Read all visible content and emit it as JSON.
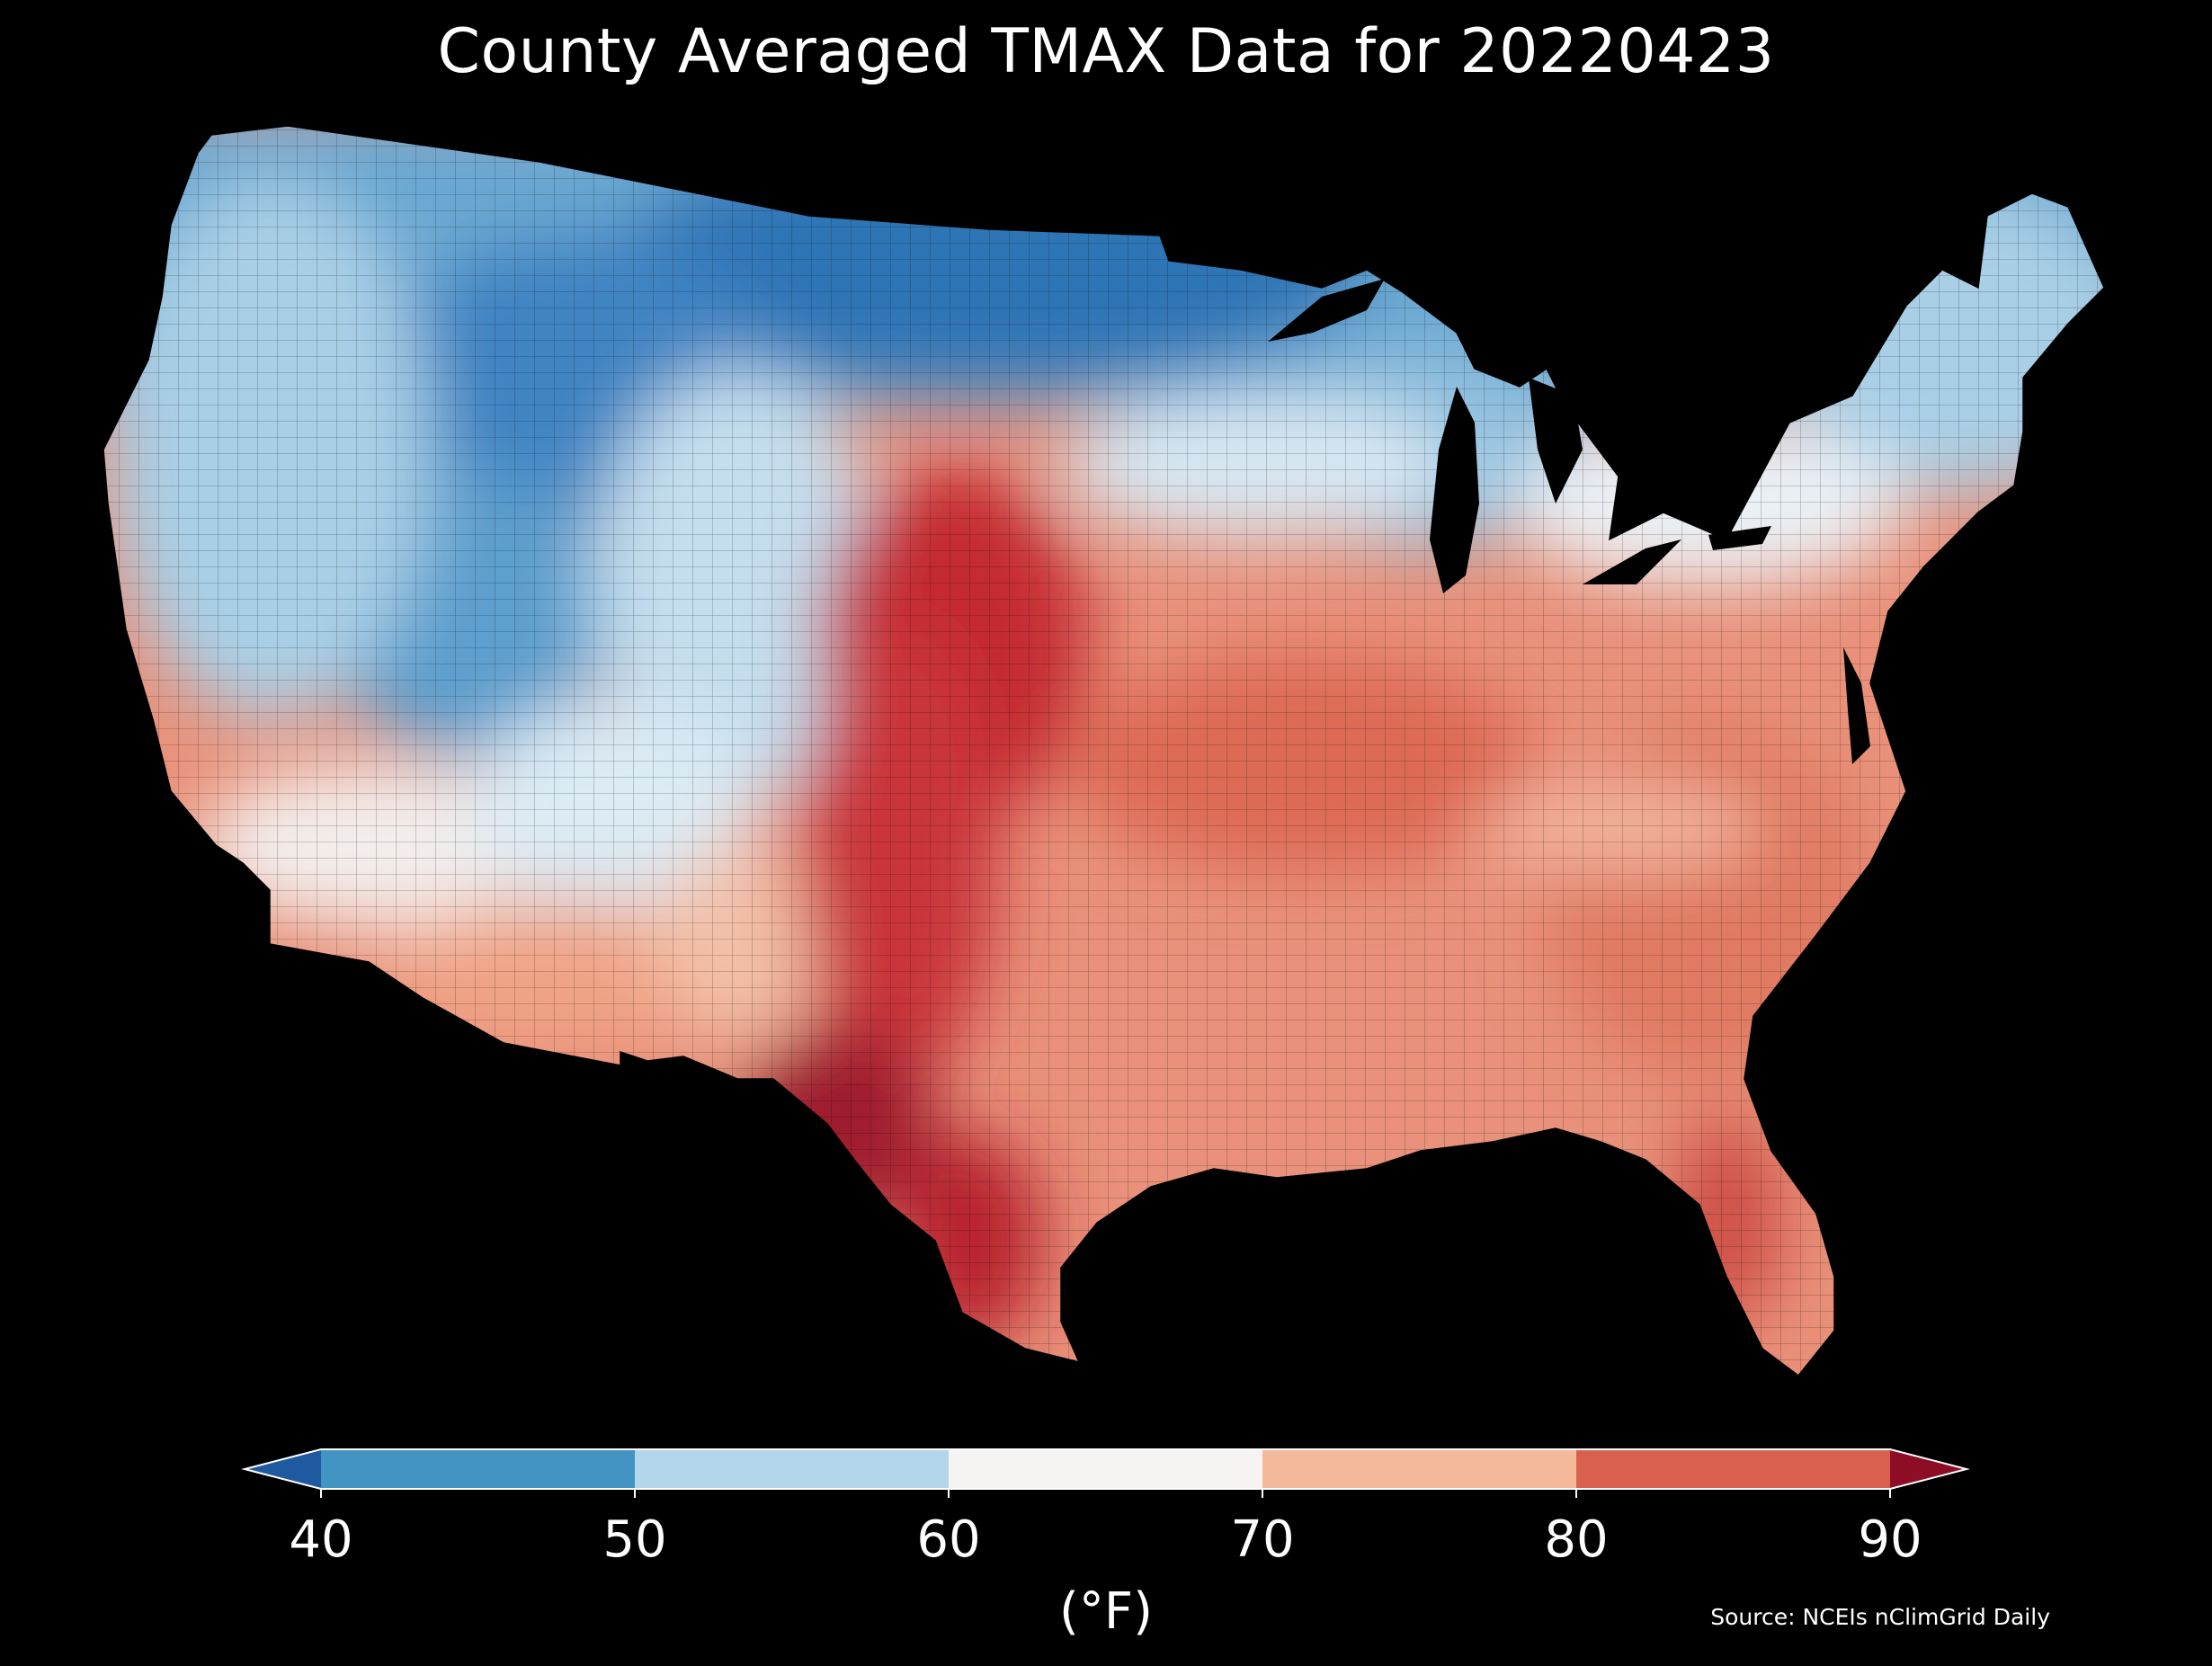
{
  "title": "County Averaged TMAX Data for 20220423",
  "colorbar": {
    "ticks": [
      "40",
      "50",
      "60",
      "70",
      "80",
      "90"
    ],
    "unit": "(°F)",
    "bins": [
      {
        "range": "<40",
        "color": "#1f5aa0"
      },
      {
        "range": "40-50",
        "color": "#4393c3"
      },
      {
        "range": "50-60",
        "color": "#b3d6ea"
      },
      {
        "range": "60-70",
        "color": "#f5f4f3"
      },
      {
        "range": "70-80",
        "color": "#f4b89b"
      },
      {
        "range": "80-90",
        "color": "#d9604e"
      },
      {
        "range": ">90",
        "color": "#8c0d25"
      }
    ]
  },
  "source": "Source: NCEIs nClimGrid Daily"
}
